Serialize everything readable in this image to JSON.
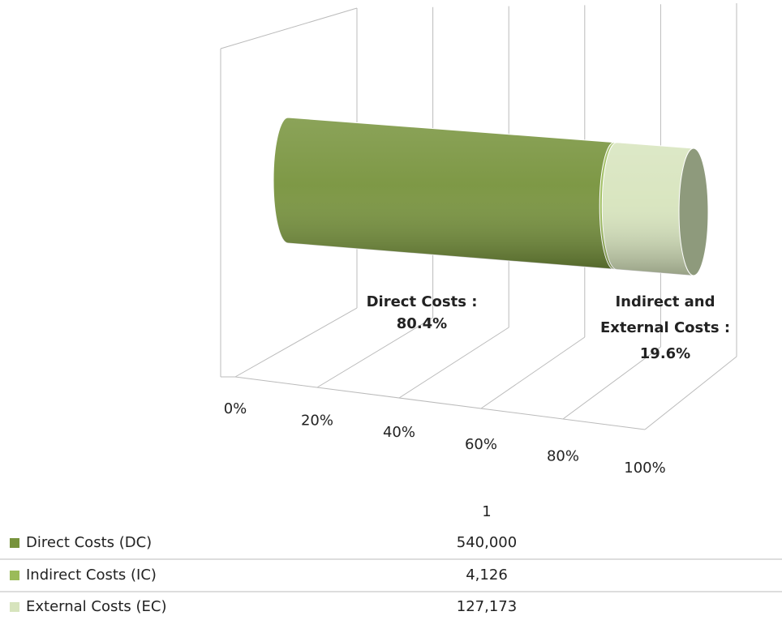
{
  "chart_data": {
    "type": "bar3d_stacked100",
    "categories": [
      "1"
    ],
    "series": [
      {
        "name": "Direct Costs (DC)",
        "color": "#77933c",
        "values": [
          540000
        ],
        "value_labels": [
          "540,000"
        ]
      },
      {
        "name": "Indirect Costs (IC)",
        "color": "#9bbb59",
        "values": [
          4126
        ],
        "value_labels": [
          "4,126"
        ]
      },
      {
        "name": "External Costs (EC)",
        "color": "#d7e4bd",
        "values": [
          127173
        ],
        "value_labels": [
          "127,173"
        ]
      }
    ],
    "xlim": [
      0,
      100
    ],
    "xticks": [
      {
        "value": 0,
        "label": "0%"
      },
      {
        "value": 20,
        "label": "20%"
      },
      {
        "value": 40,
        "label": "40%"
      },
      {
        "value": 60,
        "label": "60%"
      },
      {
        "value": 80,
        "label": "80%"
      },
      {
        "value": 100,
        "label": "100%"
      }
    ],
    "grid": true,
    "annotations": [
      {
        "lines": [
          "Direct Costs :",
          "80.4%"
        ]
      },
      {
        "lines": [
          "Indirect and",
          "External Costs :",
          "19.6%"
        ]
      }
    ]
  }
}
